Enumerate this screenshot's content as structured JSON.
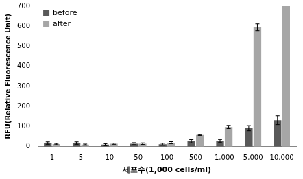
{
  "chart_data": {
    "type": "bar",
    "x_label": "세포수(1,000 cells/ml)",
    "y_label": "RFU(Relative Fluorescence Unit)",
    "categories": [
      "1",
      "5",
      "10",
      "50",
      "100",
      "500",
      "1,000",
      "5,000",
      "10,000"
    ],
    "series": [
      {
        "name": "before",
        "color": "#595959",
        "values": [
          18,
          18,
          10,
          15,
          12,
          27,
          28,
          92,
          132
        ],
        "errors": [
          6,
          6,
          5,
          5,
          5,
          8,
          8,
          13,
          22
        ]
      },
      {
        "name": "after",
        "color": "#a6a6a6",
        "values": [
          13,
          10,
          15,
          15,
          20,
          58,
          98,
          595,
          700
        ],
        "errors": [
          3,
          3,
          3,
          4,
          5,
          2,
          8,
          17,
          0
        ]
      }
    ],
    "ylim": [
      0,
      700
    ],
    "yticks": [
      0,
      100,
      200,
      300,
      400,
      500,
      600,
      700
    ],
    "grid": false,
    "legend": "upper left"
  }
}
